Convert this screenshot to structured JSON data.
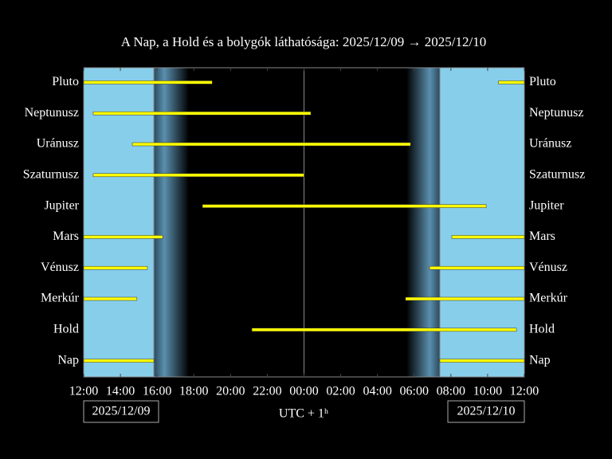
{
  "chart_data": {
    "type": "range_bar",
    "title": "A Nap, a Hold és a bolygók láthatósága: 2025/12/09 → 2025/12/10",
    "x_label": "UTC + 1ʰ",
    "start_date": "2025/12/09",
    "end_date": "2025/12/10",
    "categories": [
      "Pluto",
      "Neptunusz",
      "Uránusz",
      "Szaturnusz",
      "Jupiter",
      "Mars",
      "Vénusz",
      "Merkúr",
      "Hold",
      "Nap"
    ],
    "intervals": [
      [
        [
          0,
          7.0
        ],
        [
          22.6,
          24
        ]
      ],
      [
        [
          0.52,
          12.37
        ]
      ],
      [
        [
          2.65,
          17.8
        ]
      ],
      [
        [
          0.52,
          12.0
        ]
      ],
      [
        [
          6.47,
          21.92
        ]
      ],
      [
        [
          0,
          4.3
        ],
        [
          20.05,
          24
        ]
      ],
      [
        [
          0,
          3.47
        ],
        [
          18.84,
          24
        ]
      ],
      [
        [
          0,
          2.9
        ],
        [
          17.53,
          24
        ]
      ],
      [
        [
          9.16,
          23.57
        ]
      ],
      [
        [
          0,
          3.82
        ],
        [
          19.4,
          24
        ]
      ]
    ],
    "twilight": [
      5.73,
      17.58
    ],
    "vlines": [
      3.82,
      12,
      19.4
    ],
    "xlim": [
      0,
      24
    ],
    "xticks": [
      {
        "value": 0,
        "label": "12:00"
      },
      {
        "value": 2,
        "label": "14:00"
      },
      {
        "value": 4,
        "label": "16:00"
      },
      {
        "value": 6,
        "label": "18:00"
      },
      {
        "value": 8,
        "label": "20:00"
      },
      {
        "value": 10,
        "label": "22:00"
      },
      {
        "value": 12,
        "label": "00:00"
      },
      {
        "value": 14,
        "label": "02:00"
      },
      {
        "value": 16,
        "label": "04:00"
      },
      {
        "value": 18,
        "label": "06:00"
      },
      {
        "value": 20,
        "label": "08:00"
      },
      {
        "value": 22,
        "label": "10:00"
      },
      {
        "value": 24,
        "label": "12:00"
      }
    ],
    "bar_color": "#ffff00",
    "day_color": "#87ceeb",
    "night_color": "#000000"
  }
}
